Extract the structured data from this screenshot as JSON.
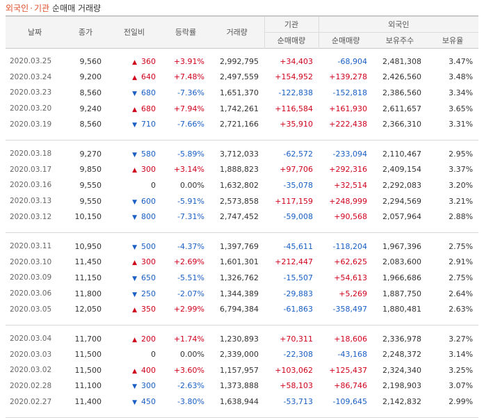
{
  "header": {
    "tab_foreign": "외국인",
    "tab_sep": "·",
    "tab_inst": "기관",
    "subtitle": "순매매 거래량"
  },
  "columns": {
    "date": "날짜",
    "close": "종가",
    "change": "전일비",
    "rate": "등락률",
    "volume": "거래량",
    "inst_group": "기관",
    "inst_net": "순매매량",
    "foreign_group": "외국인",
    "foreign_net": "순매매량",
    "foreign_hold": "보유주수",
    "foreign_ratio": "보유율"
  },
  "groups": [
    [
      {
        "date": "2020.03.25",
        "close": "9,560",
        "dir": "up",
        "diff": "360",
        "rate": "+3.91%",
        "volume": "2,992,795",
        "inst": "+34,403",
        "foreign": "-68,904",
        "hold": "2,481,308",
        "ratio": "3.47%"
      },
      {
        "date": "2020.03.24",
        "close": "9,200",
        "dir": "up",
        "diff": "640",
        "rate": "+7.48%",
        "volume": "2,497,559",
        "inst": "+154,952",
        "foreign": "+139,278",
        "hold": "2,426,560",
        "ratio": "3.48%"
      },
      {
        "date": "2020.03.23",
        "close": "8,560",
        "dir": "down",
        "diff": "680",
        "rate": "-7.36%",
        "volume": "1,651,370",
        "inst": "-122,838",
        "foreign": "-152,818",
        "hold": "2,386,560",
        "ratio": "3.34%"
      },
      {
        "date": "2020.03.20",
        "close": "9,240",
        "dir": "up",
        "diff": "680",
        "rate": "+7.94%",
        "volume": "1,742,261",
        "inst": "+116,584",
        "foreign": "+161,930",
        "hold": "2,611,657",
        "ratio": "3.65%"
      },
      {
        "date": "2020.03.19",
        "close": "8,560",
        "dir": "down",
        "diff": "710",
        "rate": "-7.66%",
        "volume": "2,721,166",
        "inst": "+35,910",
        "foreign": "+222,438",
        "hold": "2,366,310",
        "ratio": "3.31%"
      }
    ],
    [
      {
        "date": "2020.03.18",
        "close": "9,270",
        "dir": "down",
        "diff": "580",
        "rate": "-5.89%",
        "volume": "3,712,033",
        "inst": "-62,572",
        "foreign": "-233,094",
        "hold": "2,110,467",
        "ratio": "2.95%"
      },
      {
        "date": "2020.03.17",
        "close": "9,850",
        "dir": "up",
        "diff": "300",
        "rate": "+3.14%",
        "volume": "1,888,823",
        "inst": "+97,706",
        "foreign": "+292,316",
        "hold": "2,409,154",
        "ratio": "3.37%"
      },
      {
        "date": "2020.03.16",
        "close": "9,550",
        "dir": "none",
        "diff": "0",
        "rate": "0.00%",
        "volume": "1,632,802",
        "inst": "-35,078",
        "foreign": "+32,514",
        "hold": "2,292,083",
        "ratio": "3.20%"
      },
      {
        "date": "2020.03.13",
        "close": "9,550",
        "dir": "down",
        "diff": "600",
        "rate": "-5.91%",
        "volume": "2,573,858",
        "inst": "+117,159",
        "foreign": "+248,999",
        "hold": "2,294,569",
        "ratio": "3.21%"
      },
      {
        "date": "2020.03.12",
        "close": "10,150",
        "dir": "down",
        "diff": "800",
        "rate": "-7.31%",
        "volume": "2,747,452",
        "inst": "-59,008",
        "foreign": "+90,568",
        "hold": "2,057,964",
        "ratio": "2.88%"
      }
    ],
    [
      {
        "date": "2020.03.11",
        "close": "10,950",
        "dir": "down",
        "diff": "500",
        "rate": "-4.37%",
        "volume": "1,397,769",
        "inst": "-45,611",
        "foreign": "-118,204",
        "hold": "1,967,396",
        "ratio": "2.75%"
      },
      {
        "date": "2020.03.10",
        "close": "11,450",
        "dir": "up",
        "diff": "300",
        "rate": "+2.69%",
        "volume": "1,601,301",
        "inst": "+212,447",
        "foreign": "+62,625",
        "hold": "2,083,600",
        "ratio": "2.91%"
      },
      {
        "date": "2020.03.09",
        "close": "11,150",
        "dir": "down",
        "diff": "650",
        "rate": "-5.51%",
        "volume": "1,326,762",
        "inst": "-15,507",
        "foreign": "+54,613",
        "hold": "1,966,686",
        "ratio": "2.75%"
      },
      {
        "date": "2020.03.06",
        "close": "11,800",
        "dir": "down",
        "diff": "250",
        "rate": "-2.07%",
        "volume": "1,344,389",
        "inst": "-29,883",
        "foreign": "+5,269",
        "hold": "1,887,750",
        "ratio": "2.64%"
      },
      {
        "date": "2020.03.05",
        "close": "12,050",
        "dir": "up",
        "diff": "350",
        "rate": "+2.99%",
        "volume": "6,794,384",
        "inst": "-61,863",
        "foreign": "-358,497",
        "hold": "1,880,481",
        "ratio": "2.63%"
      }
    ],
    [
      {
        "date": "2020.03.04",
        "close": "11,700",
        "dir": "up",
        "diff": "200",
        "rate": "+1.74%",
        "volume": "1,230,893",
        "inst": "+70,311",
        "foreign": "+18,606",
        "hold": "2,336,978",
        "ratio": "3.27%"
      },
      {
        "date": "2020.03.03",
        "close": "11,500",
        "dir": "none",
        "diff": "0",
        "rate": "0.00%",
        "volume": "2,339,000",
        "inst": "-22,308",
        "foreign": "-43,168",
        "hold": "2,248,372",
        "ratio": "3.14%"
      },
      {
        "date": "2020.03.02",
        "close": "11,500",
        "dir": "up",
        "diff": "400",
        "rate": "+3.60%",
        "volume": "1,157,957",
        "inst": "+103,062",
        "foreign": "+125,437",
        "hold": "2,324,340",
        "ratio": "3.25%"
      },
      {
        "date": "2020.02.28",
        "close": "11,100",
        "dir": "down",
        "diff": "300",
        "rate": "-2.63%",
        "volume": "1,373,888",
        "inst": "+58,103",
        "foreign": "+86,746",
        "hold": "2,198,903",
        "ratio": "3.07%"
      },
      {
        "date": "2020.02.27",
        "close": "11,400",
        "dir": "down",
        "diff": "450",
        "rate": "-3.80%",
        "volume": "1,638,944",
        "inst": "-53,713",
        "foreign": "-109,645",
        "hold": "2,142,832",
        "ratio": "2.99%"
      }
    ]
  ],
  "colors": {
    "up": "#d0021b",
    "down": "#1a5fc4",
    "accent": "#e0502c"
  },
  "icons": {
    "up": "triangle-up-icon",
    "down": "triangle-down-icon"
  }
}
